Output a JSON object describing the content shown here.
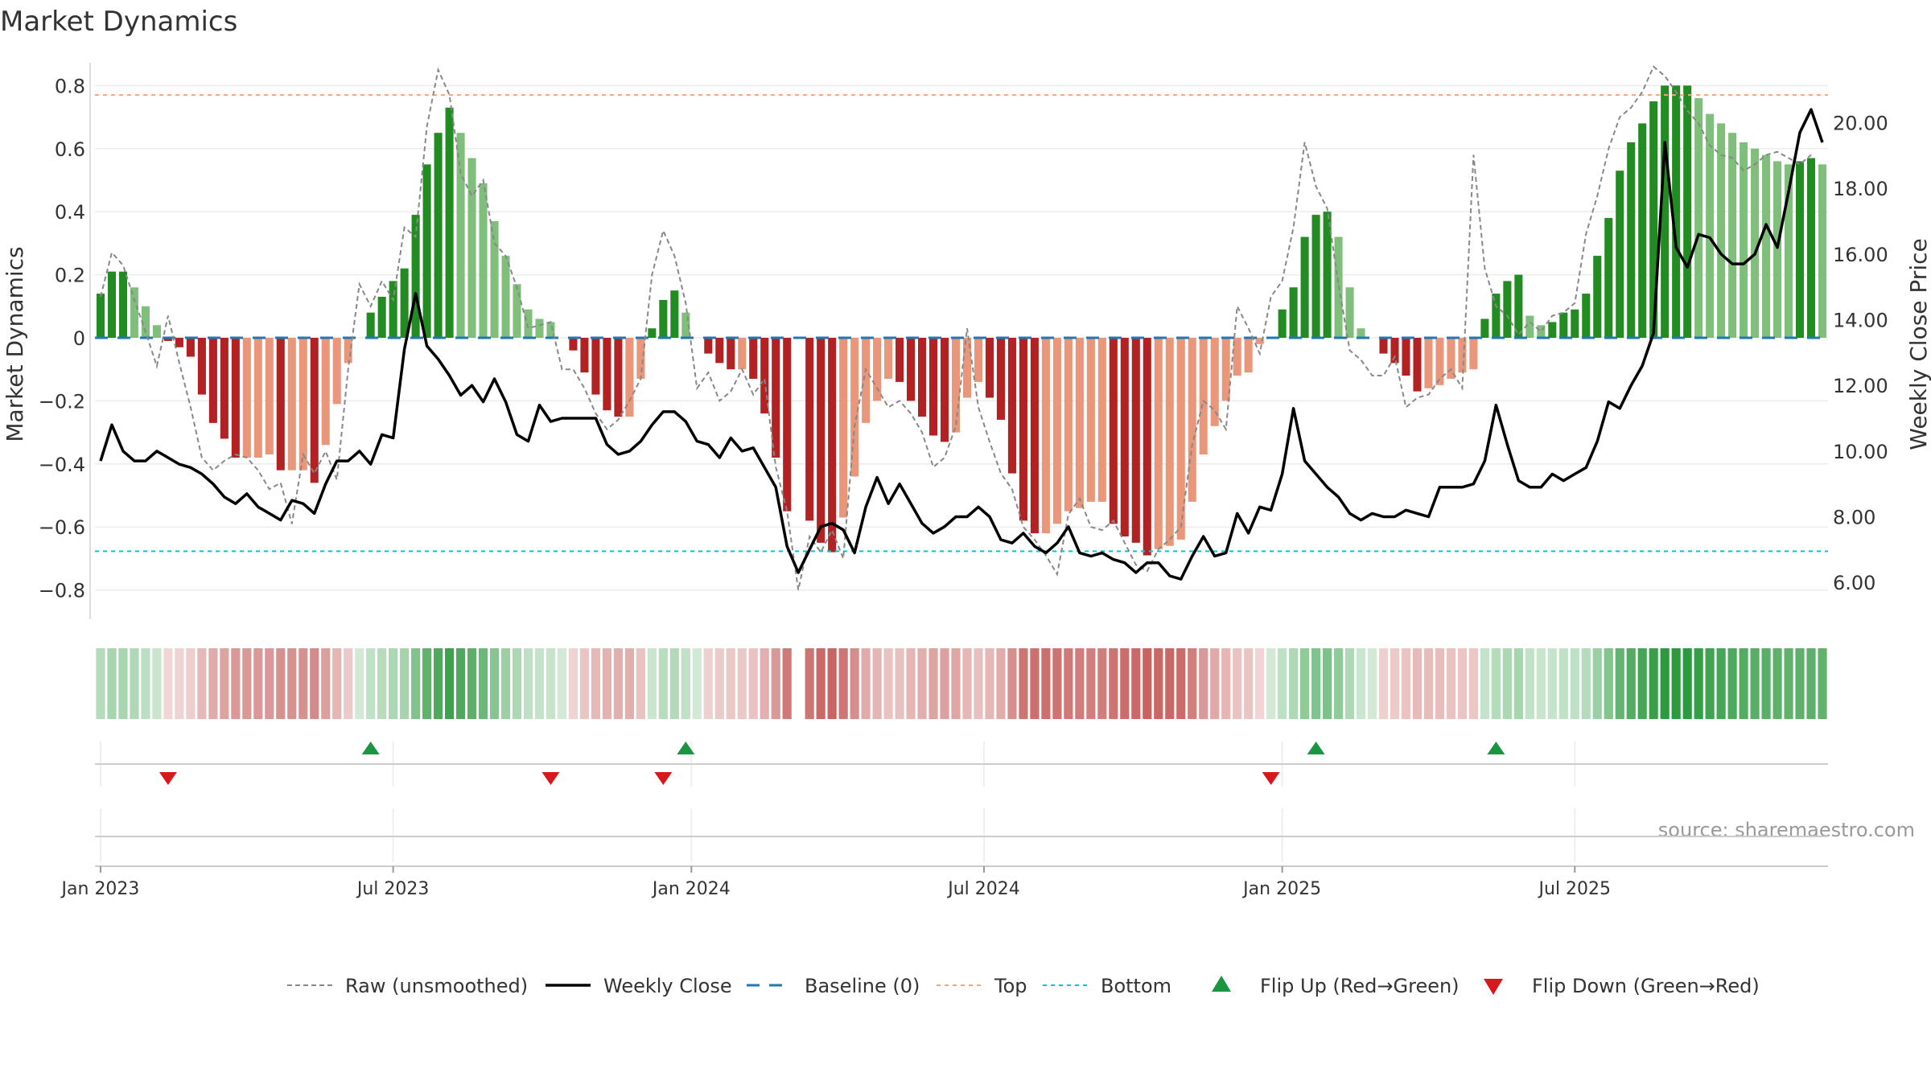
{
  "chart_data": {
    "type": "bar",
    "title": "Market Dynamics",
    "ylabel": "Market Dynamics",
    "y2label": "Weekly Close Price",
    "ylim": [
      -0.88,
      0.88
    ],
    "y2lim": [
      5.0,
      21.9
    ],
    "yticks": [
      "−0.8",
      "−0.6",
      "−0.4",
      "−0.2",
      "0",
      "0.2",
      "0.4",
      "0.6",
      "0.8"
    ],
    "yticks_values": [
      -0.8,
      -0.6,
      -0.4,
      -0.2,
      0,
      0.2,
      0.4,
      0.6,
      0.8
    ],
    "y2ticks": [
      "6.00",
      "8.00",
      "10.00",
      "12.00",
      "14.00",
      "16.00",
      "18.00",
      "20.00"
    ],
    "y2ticks_values": [
      6,
      8,
      10,
      12,
      14,
      16,
      18,
      20
    ],
    "xticks": [
      {
        "label": "Jan 2023",
        "week": 0
      },
      {
        "label": "Jul 2023",
        "week": 26
      },
      {
        "label": "Jan 2024",
        "week": 52.5
      },
      {
        "label": "Jul 2024",
        "week": 78.5
      },
      {
        "label": "Jan 2025",
        "week": 105
      },
      {
        "label": "Jul 2025",
        "week": 131
      }
    ],
    "top": 0.77,
    "bottom": -0.677,
    "grid": true,
    "legend_position": "bottom-center",
    "colors": {
      "strong_green": "#228b22",
      "light_green": "#7fbf7b",
      "strong_red": "#b22222",
      "light_red": "#e9967a",
      "raw": "#888888",
      "close": "#000000",
      "baseline": "#1f77b4",
      "top": "#f4a582",
      "bottom": "#17becf",
      "flip_up": "#1a9641",
      "flip_down": "#d7191c"
    },
    "momentum": [
      0.14,
      0.21,
      0.21,
      0.16,
      0.1,
      0.04,
      -0.01,
      -0.03,
      -0.06,
      -0.18,
      -0.27,
      -0.32,
      -0.38,
      -0.38,
      -0.38,
      -0.37,
      -0.42,
      -0.42,
      -0.42,
      -0.46,
      -0.34,
      -0.21,
      -0.08,
      0,
      0.08,
      0.13,
      0.18,
      0.22,
      0.39,
      0.55,
      0.65,
      0.73,
      0.65,
      0.57,
      0.49,
      0.37,
      0.26,
      0.17,
      0.09,
      0.06,
      0.05,
      0,
      -0.04,
      -0.11,
      -0.18,
      -0.23,
      -0.25,
      -0.25,
      -0.13,
      0.03,
      0.12,
      0.15,
      0.08,
      0,
      -0.05,
      -0.08,
      -0.1,
      -0.1,
      -0.13,
      -0.24,
      -0.38,
      -0.55,
      0,
      -0.58,
      -0.65,
      -0.68,
      -0.57,
      -0.44,
      -0.27,
      -0.2,
      -0.13,
      -0.14,
      -0.2,
      -0.25,
      -0.31,
      -0.33,
      -0.3,
      -0.19,
      -0.14,
      -0.19,
      -0.26,
      -0.43,
      -0.58,
      -0.62,
      -0.62,
      -0.59,
      -0.55,
      -0.54,
      -0.52,
      -0.52,
      -0.59,
      -0.63,
      -0.65,
      -0.69,
      -0.67,
      -0.66,
      -0.64,
      -0.52,
      -0.37,
      -0.28,
      -0.2,
      -0.12,
      -0.11,
      -0.02,
      0,
      0.09,
      0.16,
      0.32,
      0.39,
      0.4,
      0.32,
      0.16,
      0.03,
      0,
      -0.05,
      -0.08,
      -0.12,
      -0.17,
      -0.16,
      -0.15,
      -0.13,
      -0.11,
      -0.1,
      0.06,
      0.14,
      0.18,
      0.2,
      0.07,
      0.04,
      0.05,
      0.08,
      0.09,
      0.14,
      0.26,
      0.38,
      0.53,
      0.62,
      0.68,
      0.75,
      0.8,
      0.8,
      0.8,
      0.76,
      0.71,
      0.68,
      0.65,
      0.62,
      0.6,
      0.58,
      0.56,
      0.55,
      0.56,
      0.57,
      0.55
    ],
    "raw": [
      0.13,
      0.27,
      0.23,
      0.12,
      0.02,
      -0.09,
      0.07,
      -0.08,
      -0.22,
      -0.38,
      -0.42,
      -0.39,
      -0.37,
      -0.38,
      -0.42,
      -0.48,
      -0.46,
      -0.59,
      -0.37,
      -0.43,
      -0.36,
      -0.45,
      -0.1,
      0.17,
      0.1,
      0.18,
      0.12,
      0.35,
      0.32,
      0.67,
      0.85,
      0.77,
      0.52,
      0.45,
      0.5,
      0.3,
      0.26,
      0.16,
      0.03,
      0.04,
      0.05,
      -0.1,
      -0.1,
      -0.16,
      -0.24,
      -0.29,
      -0.26,
      -0.2,
      -0.13,
      0.2,
      0.34,
      0.26,
      0.11,
      -0.16,
      -0.11,
      -0.2,
      -0.17,
      -0.1,
      -0.18,
      -0.13,
      -0.41,
      -0.55,
      -0.8,
      -0.63,
      -0.68,
      -0.61,
      -0.7,
      -0.28,
      -0.1,
      -0.16,
      -0.22,
      -0.2,
      -0.24,
      -0.3,
      -0.41,
      -0.38,
      -0.28,
      0.03,
      -0.22,
      -0.33,
      -0.43,
      -0.48,
      -0.6,
      -0.64,
      -0.69,
      -0.75,
      -0.56,
      -0.51,
      -0.6,
      -0.61,
      -0.58,
      -0.65,
      -0.72,
      -0.74,
      -0.67,
      -0.64,
      -0.6,
      -0.34,
      -0.2,
      -0.23,
      -0.29,
      0.1,
      0.03,
      -0.05,
      0.13,
      0.18,
      0.35,
      0.62,
      0.48,
      0.41,
      0.17,
      -0.04,
      -0.07,
      -0.12,
      -0.12,
      -0.06,
      -0.22,
      -0.19,
      -0.18,
      -0.13,
      -0.1,
      -0.16,
      0.58,
      0.22,
      0.1,
      0.07,
      0.01,
      0.05,
      0.02,
      0.07,
      0.08,
      0.11,
      0.33,
      0.45,
      0.6,
      0.7,
      0.73,
      0.78,
      0.86,
      0.83,
      0.78,
      0.72,
      0.68,
      0.61,
      0.58,
      0.57,
      0.53,
      0.55,
      0.58,
      0.59,
      0.57,
      0.55,
      0.58
    ],
    "close": [
      9.7,
      10.8,
      10.0,
      9.7,
      9.7,
      10.0,
      9.8,
      9.6,
      9.5,
      9.3,
      9.0,
      8.6,
      8.4,
      8.7,
      8.3,
      8.1,
      7.9,
      8.5,
      8.4,
      8.1,
      9.0,
      9.7,
      9.7,
      10.0,
      9.6,
      10.5,
      10.4,
      13.1,
      14.8,
      13.2,
      12.8,
      12.3,
      11.7,
      12.0,
      11.5,
      12.2,
      11.5,
      10.5,
      10.3,
      11.4,
      10.9,
      11.0,
      11.0,
      11.0,
      11.0,
      10.2,
      9.9,
      10.0,
      10.3,
      10.8,
      11.2,
      11.2,
      10.9,
      10.3,
      10.2,
      9.8,
      10.4,
      10.0,
      10.1,
      9.5,
      8.9,
      7.1,
      6.3,
      7.0,
      7.7,
      7.8,
      7.6,
      6.9,
      8.3,
      9.2,
      8.4,
      9.0,
      8.4,
      7.8,
      7.5,
      7.7,
      8.0,
      8.0,
      8.3,
      8.0,
      7.3,
      7.2,
      7.5,
      7.1,
      6.9,
      7.2,
      7.7,
      6.9,
      6.8,
      6.9,
      6.7,
      6.6,
      6.3,
      6.6,
      6.6,
      6.2,
      6.1,
      6.8,
      7.4,
      6.8,
      6.9,
      8.1,
      7.5,
      8.3,
      8.2,
      9.3,
      11.3,
      9.7,
      9.3,
      8.9,
      8.6,
      8.1,
      7.9,
      8.1,
      8.0,
      8.0,
      8.2,
      8.1,
      8.0,
      8.9,
      8.9,
      8.9,
      9.0,
      9.7,
      11.4,
      10.2,
      9.1,
      8.9,
      8.9,
      9.3,
      9.1,
      9.3,
      9.5,
      10.3,
      11.5,
      11.3,
      12.0,
      12.6,
      13.6,
      19.4,
      16.2,
      15.6,
      16.6,
      16.5,
      16.0,
      15.7,
      15.7,
      16.0,
      16.9,
      16.2,
      17.9,
      19.7,
      20.4,
      19.4
    ],
    "series": [
      {
        "name": "Raw (unsmoothed)"
      },
      {
        "name": "Weekly Close"
      },
      {
        "name": "Baseline (0)"
      },
      {
        "name": "Top"
      },
      {
        "name": "Bottom"
      },
      {
        "name": "Flip Up (Red→Green)"
      },
      {
        "name": "Flip Down (Green→Red)"
      }
    ],
    "flips_up": [
      24,
      52,
      108,
      124
    ],
    "flips_down": [
      6,
      40,
      50,
      104
    ],
    "source": "source: sharemaestro.com"
  }
}
